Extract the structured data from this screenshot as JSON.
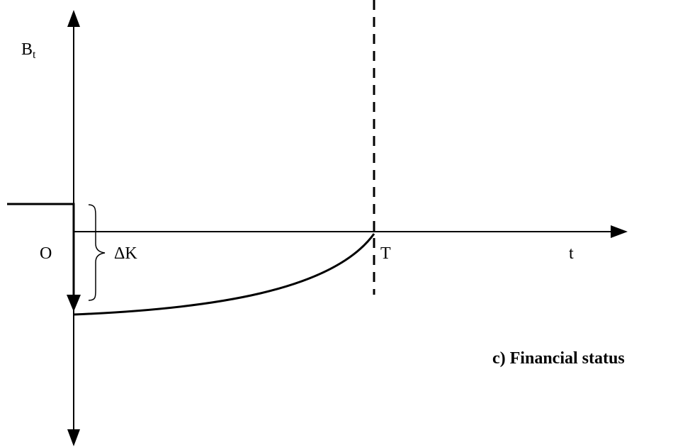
{
  "labels": {
    "y_axis_main": "B",
    "y_axis_sub": "t",
    "origin": "O",
    "delta_k": "ΔK",
    "t_mark": "T",
    "x_axis": "t",
    "caption": "c) Financial status"
  },
  "colors": {
    "ink": "#000000",
    "background": "#ffffff"
  }
}
